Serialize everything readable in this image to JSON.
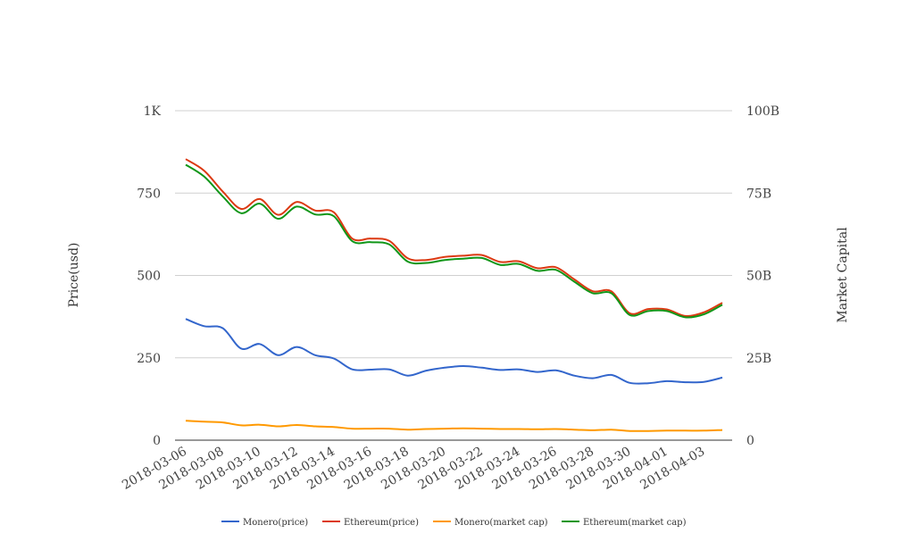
{
  "chart_data": {
    "type": "line",
    "xlabel": "",
    "ylabel": "Price(usd)",
    "y2label": "Market Capital",
    "ylim": [
      0,
      1000
    ],
    "y2lim": [
      0,
      100000000000
    ],
    "y_ticks": [
      "0",
      "250",
      "500",
      "750",
      "1K"
    ],
    "y2_ticks": [
      "0",
      "25B",
      "50B",
      "75B",
      "100B"
    ],
    "x_tick_labels": [
      "2018-03-06",
      "2018-03-08",
      "2018-03-10",
      "2018-03-12",
      "2018-03-14",
      "2018-03-16",
      "2018-03-18",
      "2018-03-20",
      "2018-03-22",
      "2018-03-24",
      "2018-03-26",
      "2018-03-28",
      "2018-03-30",
      "2018-04-01",
      "2018-04-03"
    ],
    "grid": true,
    "legend_position": "bottom",
    "x": [
      "2018-03-06",
      "2018-03-07",
      "2018-03-08",
      "2018-03-09",
      "2018-03-10",
      "2018-03-11",
      "2018-03-12",
      "2018-03-13",
      "2018-03-14",
      "2018-03-15",
      "2018-03-16",
      "2018-03-17",
      "2018-03-18",
      "2018-03-19",
      "2018-03-20",
      "2018-03-21",
      "2018-03-22",
      "2018-03-23",
      "2018-03-24",
      "2018-03-25",
      "2018-03-26",
      "2018-03-27",
      "2018-03-28",
      "2018-03-29",
      "2018-03-30",
      "2018-03-31",
      "2018-04-01",
      "2018-04-02",
      "2018-04-03",
      "2018-04-04"
    ],
    "series": [
      {
        "name": "Monero(price)",
        "axis": "left",
        "color": "#3366cc",
        "values": [
          368,
          346,
          340,
          278,
          292,
          258,
          283,
          258,
          248,
          215,
          214,
          215,
          196,
          211,
          220,
          225,
          220,
          213,
          215,
          207,
          212,
          196,
          188,
          198,
          174,
          173,
          179,
          176,
          177,
          190
        ]
      },
      {
        "name": "Ethereum(price)",
        "axis": "left",
        "color": "#dc3912",
        "values": [
          853,
          818,
          755,
          702,
          732,
          684,
          723,
          697,
          692,
          612,
          612,
          605,
          552,
          547,
          556,
          560,
          562,
          541,
          543,
          522,
          525,
          488,
          452,
          452,
          385,
          398,
          397,
          377,
          388,
          417
        ]
      },
      {
        "name": "Monero(market cap)",
        "axis": "right",
        "color": "#ff9900",
        "values": [
          5900000000,
          5600000000,
          5400000000,
          4500000000,
          4700000000,
          4200000000,
          4600000000,
          4200000000,
          4000000000,
          3500000000,
          3500000000,
          3500000000,
          3200000000,
          3400000000,
          3500000000,
          3600000000,
          3500000000,
          3400000000,
          3400000000,
          3300000000,
          3400000000,
          3200000000,
          3000000000,
          3200000000,
          2800000000,
          2800000000,
          2900000000,
          2900000000,
          2900000000,
          3100000000
        ]
      },
      {
        "name": "Ethereum(market cap)",
        "axis": "right",
        "color": "#109618",
        "values": [
          83600000000,
          80000000000,
          74000000000,
          68900000000,
          71800000000,
          67200000000,
          70900000000,
          68500000000,
          68000000000,
          60400000000,
          60100000000,
          59400000000,
          54200000000,
          53800000000,
          54700000000,
          55100000000,
          55300000000,
          53200000000,
          53500000000,
          51400000000,
          51700000000,
          48100000000,
          44600000000,
          44600000000,
          38000000000,
          39200000000,
          39200000000,
          37300000000,
          38200000000,
          41100000000
        ]
      }
    ]
  }
}
